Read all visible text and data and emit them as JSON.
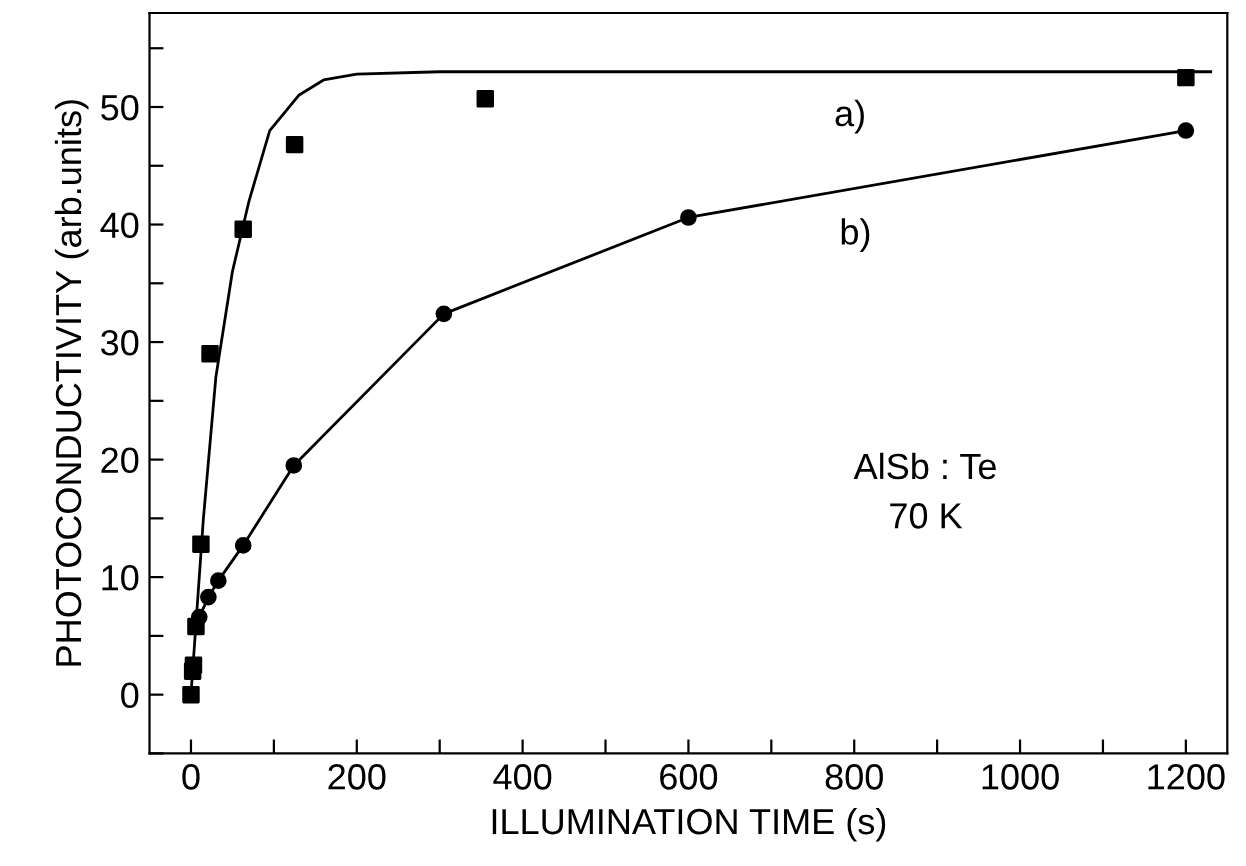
{
  "chart_data": {
    "type": "scatter",
    "xlabel": "ILLUMINATION TIME (s)",
    "ylabel": "PHOTOCONDUCTIVITY (arb.units)",
    "xlim": [
      -50,
      1250
    ],
    "ylim": [
      -5,
      58
    ],
    "xticks": [
      0,
      {
        "value": 100,
        "label": null
      },
      200,
      {
        "value": 300,
        "label": null
      },
      400,
      {
        "value": 500,
        "label": null
      },
      600,
      {
        "value": 700,
        "label": null
      },
      800,
      {
        "value": 900,
        "label": null
      },
      1000,
      {
        "value": 1100,
        "label": null
      },
      1200
    ],
    "yticks": [
      {
        "value": -5,
        "label": null
      },
      0,
      {
        "value": 5,
        "label": null
      },
      10,
      {
        "value": 15,
        "label": null
      },
      20,
      {
        "value": 25,
        "label": null
      },
      30,
      {
        "value": 35,
        "label": null
      },
      40,
      {
        "value": 45,
        "label": null
      },
      50,
      {
        "value": 55,
        "label": null
      }
    ],
    "grid": false,
    "legend": false,
    "series": [
      {
        "marker": "square",
        "color": "#000000",
        "x": [
          0,
          2,
          3,
          6,
          12,
          23,
          63,
          125,
          355,
          1200
        ],
        "values": [
          0,
          2,
          2.5,
          5.8,
          12.8,
          29,
          39.6,
          46.8,
          50.7,
          52.5
        ]
      },
      {
        "type": "line",
        "marker": "none",
        "line_style": "solid",
        "color": "#000000",
        "x": [
          0,
          15,
          30,
          50,
          70,
          95,
          130,
          160,
          200,
          300,
          1230
        ],
        "values": [
          0,
          15,
          27,
          36,
          42,
          48,
          51,
          52.3,
          52.8,
          53,
          53
        ]
      },
      {
        "type": "line",
        "marker": "circle",
        "line_style": "solid",
        "color": "#000000",
        "x": [
          10,
          21,
          33,
          63,
          124,
          305,
          600,
          1200
        ],
        "values": [
          6.6,
          8.3,
          9.7,
          12.7,
          19.5,
          32.4,
          40.6,
          48
        ]
      }
    ],
    "annotations": [
      "a)",
      "b)",
      "AlSb : Te\n70 K"
    ]
  }
}
